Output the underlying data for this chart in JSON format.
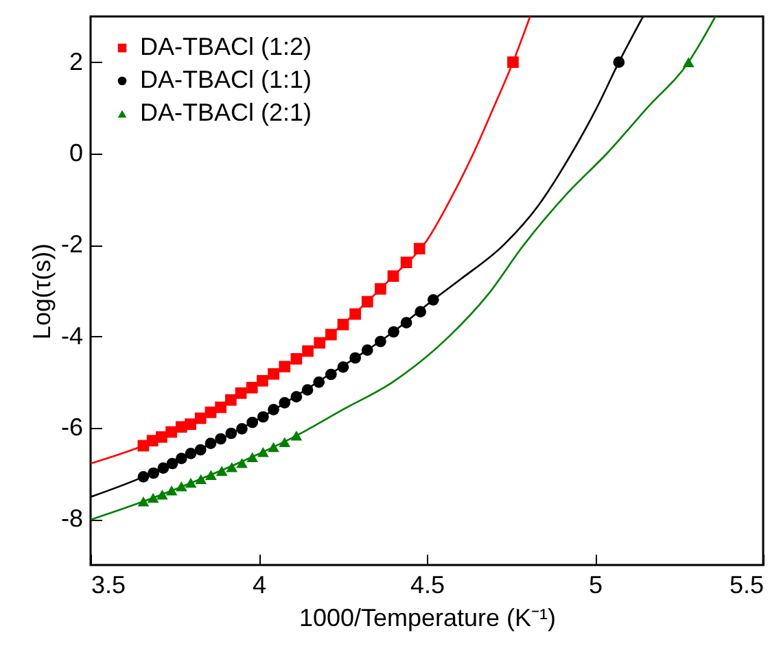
{
  "chart_data": {
    "type": "scatter",
    "xlabel": "1000/Temperature (K⁻¹)",
    "ylabel": "Log(τ(s))",
    "xlim": [
      3.5,
      5.5
    ],
    "ylim": [
      -9,
      3
    ],
    "xticks": [
      3.5,
      4,
      4.5,
      5,
      5.5
    ],
    "yticks": [
      -8,
      -6,
      -4,
      -2,
      0,
      2
    ],
    "legend": "top left",
    "grid": false,
    "series": [
      {
        "name": "DA-TBACl (1:2)",
        "marker": "square",
        "color": "#ff0000",
        "x": [
          3.657,
          3.684,
          3.711,
          3.74,
          3.77,
          3.797,
          3.827,
          3.857,
          3.887,
          3.917,
          3.947,
          3.98,
          4.011,
          4.044,
          4.077,
          4.112,
          4.146,
          4.181,
          4.215,
          4.251,
          4.287,
          4.323,
          4.362,
          4.4,
          4.439,
          4.478,
          4.756
        ],
        "values": [
          -6.39,
          -6.28,
          -6.2,
          -6.09,
          -5.98,
          -5.92,
          -5.79,
          -5.66,
          -5.55,
          -5.39,
          -5.24,
          -5.12,
          -4.97,
          -4.82,
          -4.66,
          -4.49,
          -4.32,
          -4.14,
          -3.96,
          -3.74,
          -3.51,
          -3.24,
          -2.96,
          -2.68,
          -2.38,
          -2.08,
          2
        ]
      },
      {
        "name": "DA-TBACl (1:1)",
        "marker": "circle",
        "color": "#000000",
        "x": [
          3.657,
          3.687,
          3.716,
          3.743,
          3.77,
          3.798,
          3.827,
          3.857,
          3.887,
          3.918,
          3.95,
          3.981,
          4.013,
          4.044,
          4.077,
          4.112,
          4.145,
          4.179,
          4.215,
          4.251,
          4.287,
          4.323,
          4.362,
          4.401,
          4.439,
          4.481,
          4.519,
          5.071
        ],
        "values": [
          -7.07,
          -6.99,
          -6.88,
          -6.78,
          -6.67,
          -6.56,
          -6.48,
          -6.34,
          -6.24,
          -6.12,
          -6.02,
          -5.88,
          -5.76,
          -5.6,
          -5.45,
          -5.32,
          -5.17,
          -5,
          -4.83,
          -4.67,
          -4.47,
          -4.3,
          -4.11,
          -3.9,
          -3.7,
          -3.46,
          -3.2,
          2
        ]
      },
      {
        "name": "DA-TBACl (2:1)",
        "marker": "triangle",
        "color": "#008000",
        "x": [
          3.657,
          3.686,
          3.713,
          3.741,
          3.77,
          3.798,
          3.828,
          3.858,
          3.89,
          3.92,
          3.95,
          3.981,
          4.013,
          4.044,
          4.077,
          4.112,
          5.278
        ],
        "values": [
          -7.61,
          -7.53,
          -7.46,
          -7.37,
          -7.28,
          -7.2,
          -7.12,
          -7.03,
          -6.94,
          -6.86,
          -6.77,
          -6.64,
          -6.53,
          -6.42,
          -6.31,
          -6.17,
          2
        ]
      },
      {
        "type": "line",
        "color": "#ff0000",
        "x": [
          3.5,
          3.657,
          3.8,
          4,
          4.2,
          4.4,
          4.5,
          4.57,
          4.638,
          4.698,
          4.756,
          4.807
        ],
        "values": [
          -6.78,
          -6.39,
          -5.92,
          -5.02,
          -4.04,
          -2.68,
          -1.9,
          -1,
          0,
          1,
          2,
          3
        ]
      },
      {
        "type": "line",
        "color": "#000000",
        "x": [
          3.5,
          3.657,
          3.8,
          4,
          4.2,
          4.4,
          4.519,
          4.6,
          4.728,
          4.83,
          4.93,
          5.005,
          5.071,
          5.143
        ],
        "values": [
          -7.51,
          -7.07,
          -6.56,
          -5.8,
          -4.88,
          -3.9,
          -3.2,
          -2.75,
          -2,
          -1.15,
          0,
          1,
          2,
          3
        ]
      },
      {
        "type": "line",
        "color": "#008000",
        "x": [
          3.5,
          3.657,
          3.8,
          4,
          4.112,
          4.25,
          4.398,
          4.566,
          4.68,
          4.788,
          4.92,
          5.035,
          5.155,
          5.278,
          5.358
        ],
        "values": [
          -8.01,
          -7.61,
          -7.2,
          -6.57,
          -6.17,
          -5.6,
          -5,
          -4,
          -3.1,
          -2,
          -0.85,
          0,
          1,
          2,
          3
        ]
      }
    ]
  }
}
